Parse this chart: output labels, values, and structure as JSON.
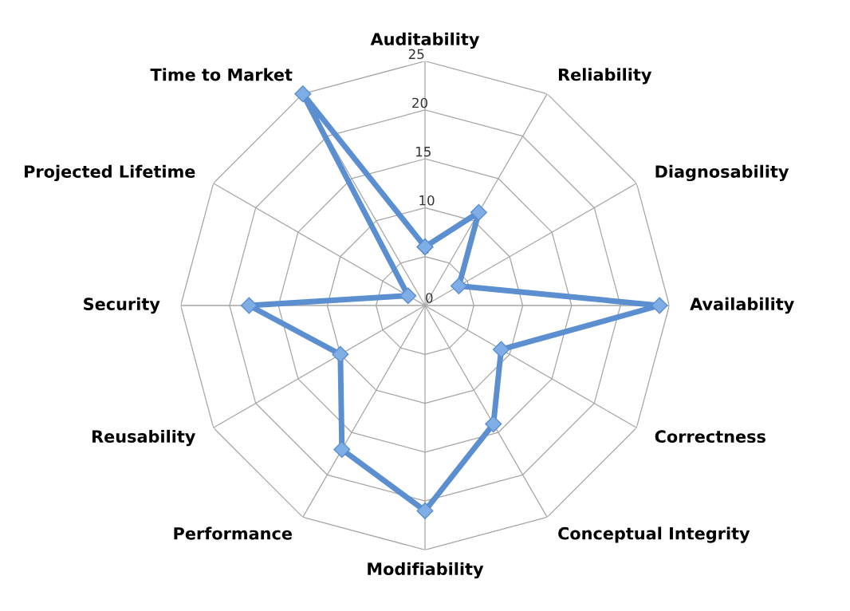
{
  "chart_data": {
    "type": "radar",
    "categories": [
      "Auditability",
      "Reliability",
      "Diagnosability",
      "Availability",
      "Correctness",
      "Conceptual Integrity",
      "Modifiability",
      "Performance",
      "Reusability",
      "Security",
      "Projected Lifetime",
      "Time to Market"
    ],
    "series": [
      {
        "color": "#5b8fd0",
        "values": [
          6,
          11,
          4,
          24,
          9,
          14,
          21,
          17,
          10,
          18,
          2,
          25
        ]
      }
    ],
    "ylim": [
      0,
      25
    ],
    "yticks": [
      0,
      5,
      10,
      15,
      20,
      25
    ],
    "grid": true,
    "marker": "diamond",
    "legend": false
  }
}
